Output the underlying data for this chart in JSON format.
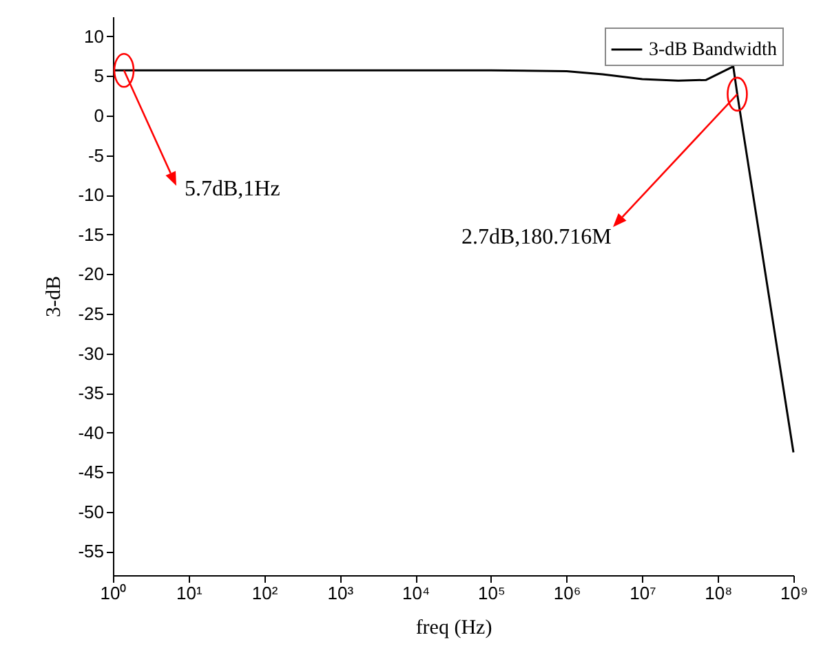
{
  "chart_data": {
    "type": "line",
    "xlabel": "freq (Hz)",
    "ylabel": "3-dB",
    "log": "x",
    "x": [
      1,
      100000,
      1000000,
      3000000,
      10000000,
      30000000,
      70000000,
      160000000,
      180716000,
      1000000000
    ],
    "series": [
      {
        "name": "3-dB Bandwidth",
        "color": "#000000",
        "values": [
          5.7,
          5.7,
          5.6,
          5.2,
          4.6,
          4.4,
          4.5,
          6.2,
          2.7,
          -42.5
        ]
      }
    ],
    "xlim": [
      1,
      1000000000
    ],
    "xticks": [
      {
        "value": 1,
        "label": "10⁰"
      },
      {
        "value": 10,
        "label": "10¹"
      },
      {
        "value": 100,
        "label": "10²"
      },
      {
        "value": 1000,
        "label": "10³"
      },
      {
        "value": 10000,
        "label": "10⁴"
      },
      {
        "value": 100000,
        "label": "10⁵"
      },
      {
        "value": 1000000,
        "label": "10⁶"
      },
      {
        "value": 10000000,
        "label": "10⁷"
      },
      {
        "value": 100000000,
        "label": "10⁸"
      },
      {
        "value": 1000000000,
        "label": "10⁹"
      }
    ],
    "ylim": [
      -58,
      12.5
    ],
    "yticks": [
      -55,
      -50,
      -45,
      -40,
      -35,
      -30,
      -25,
      -20,
      -15,
      -10,
      -5,
      0,
      5,
      10
    ],
    "legend": "top right",
    "grid": false,
    "annotations": [
      {
        "text": "5.7dB,1Hz",
        "x": 1,
        "y": 5.7
      },
      {
        "text": "2.7dB,180.716M",
        "x": 180716000,
        "y": 2.7
      }
    ]
  }
}
